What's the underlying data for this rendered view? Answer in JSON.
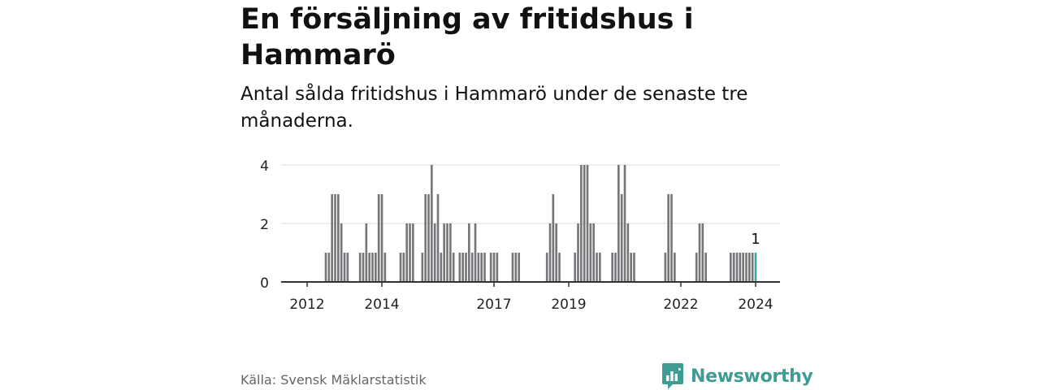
{
  "title": "En försäljning av fritidshus i Hammarö",
  "subtitle": "Antal sålda fritidshus i Hammarö under de senaste tre månaderna.",
  "source": "Källa: Svensk Mäklarstatistik",
  "brand": "Newsworthy",
  "colors": {
    "bar": "#76767a",
    "highlight": "#39a9a0",
    "grid": "#dddddd",
    "axis": "#333333",
    "brand": "#3f9c93"
  },
  "chart_data": {
    "type": "bar",
    "xlabel": "",
    "ylabel": "",
    "ylim": [
      0,
      4
    ],
    "yticks": [
      "0",
      "2",
      "4"
    ],
    "xticks": [
      "2012",
      "2014",
      "2017",
      "2019",
      "2022",
      "2024"
    ],
    "grid": true,
    "categories": [
      "2011-10",
      "2011-11",
      "2011-12",
      "2012-01",
      "2012-02",
      "2012-03",
      "2012-04",
      "2012-05",
      "2012-06",
      "2012-07",
      "2012-08",
      "2012-09",
      "2012-10",
      "2012-11",
      "2012-12",
      "2013-01",
      "2013-02",
      "2013-03",
      "2013-04",
      "2013-05",
      "2013-06",
      "2013-07",
      "2013-08",
      "2013-09",
      "2013-10",
      "2013-11",
      "2013-12",
      "2014-01",
      "2014-02",
      "2014-03",
      "2014-04",
      "2014-05",
      "2014-06",
      "2014-07",
      "2014-08",
      "2014-09",
      "2014-10",
      "2014-11",
      "2014-12",
      "2015-01",
      "2015-02",
      "2015-03",
      "2015-04",
      "2015-05",
      "2015-06",
      "2015-07",
      "2015-08",
      "2015-09",
      "2015-10",
      "2015-11",
      "2015-12",
      "2016-01",
      "2016-02",
      "2016-03",
      "2016-04",
      "2016-05",
      "2016-06",
      "2016-07",
      "2016-08",
      "2016-09",
      "2016-10",
      "2016-11",
      "2016-12",
      "2017-01",
      "2017-02",
      "2017-03",
      "2017-04",
      "2017-05",
      "2017-06",
      "2017-07",
      "2017-08",
      "2017-09",
      "2017-10",
      "2017-11",
      "2017-12",
      "2018-01",
      "2018-02",
      "2018-03",
      "2018-04",
      "2018-05",
      "2018-06",
      "2018-07",
      "2018-08",
      "2018-09",
      "2018-10",
      "2018-11",
      "2018-12",
      "2019-01",
      "2019-02",
      "2019-03",
      "2019-04",
      "2019-05",
      "2019-06",
      "2019-07",
      "2019-08",
      "2019-09",
      "2019-10",
      "2019-11",
      "2019-12",
      "2020-01",
      "2020-02",
      "2020-03",
      "2020-04",
      "2020-05",
      "2020-06",
      "2020-07",
      "2020-08",
      "2020-09",
      "2020-10",
      "2020-11",
      "2020-12",
      "2021-01",
      "2021-02",
      "2021-03",
      "2021-04",
      "2021-05",
      "2021-06",
      "2021-07",
      "2021-08",
      "2021-09",
      "2021-10",
      "2021-11",
      "2021-12",
      "2022-01",
      "2022-02",
      "2022-03",
      "2022-04",
      "2022-05",
      "2022-06",
      "2022-07",
      "2022-08",
      "2022-09",
      "2022-10",
      "2022-11",
      "2022-12",
      "2023-01",
      "2023-02",
      "2023-03",
      "2023-04",
      "2023-05",
      "2023-06",
      "2023-07",
      "2023-08",
      "2023-09",
      "2023-10",
      "2023-11",
      "2023-12",
      "2024-01"
    ],
    "values": [
      0,
      0,
      0,
      0,
      0,
      0,
      0,
      0,
      0,
      1,
      1,
      3,
      3,
      3,
      2,
      1,
      1,
      0,
      0,
      0,
      1,
      1,
      2,
      1,
      1,
      1,
      3,
      3,
      1,
      0,
      0,
      0,
      0,
      1,
      1,
      2,
      2,
      2,
      0,
      0,
      1,
      3,
      3,
      4,
      2,
      3,
      1,
      2,
      2,
      2,
      1,
      0,
      1,
      1,
      1,
      2,
      1,
      2,
      1,
      1,
      1,
      0,
      1,
      1,
      1,
      0,
      0,
      0,
      0,
      1,
      1,
      1,
      0,
      0,
      0,
      0,
      0,
      0,
      0,
      0,
      1,
      2,
      3,
      2,
      1,
      0,
      0,
      0,
      0,
      1,
      2,
      4,
      4,
      4,
      2,
      2,
      1,
      1,
      0,
      0,
      0,
      1,
      1,
      4,
      3,
      4,
      2,
      1,
      1,
      0,
      0,
      0,
      0,
      0,
      0,
      0,
      0,
      0,
      1,
      3,
      3,
      1,
      0,
      0,
      0,
      0,
      0,
      0,
      1,
      2,
      2,
      1,
      0,
      0,
      0,
      0,
      0,
      0,
      0,
      1,
      1,
      1,
      1,
      1,
      1,
      1,
      1,
      1
    ],
    "highlight": {
      "category": "2024-01",
      "value": 1,
      "label": "1"
    }
  }
}
